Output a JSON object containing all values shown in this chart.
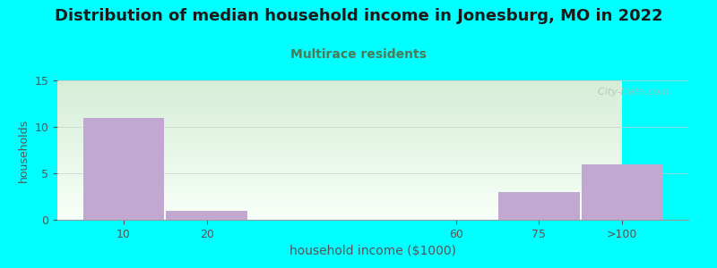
{
  "title": "Distribution of median household income in Jonesburg, MO in 2022",
  "subtitle": "Multirace residents",
  "xlabel": "household income ($1000)",
  "ylabel": "households",
  "background_color": "#00FFFF",
  "bar_color": "#C2A8D0",
  "categories": [
    "10",
    "20",
    "60",
    "75",
    ">100"
  ],
  "values": [
    11,
    1,
    0,
    3,
    6
  ],
  "ylim": [
    0,
    15
  ],
  "yticks": [
    0,
    5,
    10,
    15
  ],
  "title_fontsize": 13,
  "subtitle_fontsize": 10,
  "subtitle_color": "#4a7a5a",
  "watermark": "  City-Data.com",
  "xlabel_fontsize": 10,
  "ylabel_fontsize": 9,
  "tick_color": "#555555",
  "x_positions": [
    0,
    1,
    4,
    5,
    6
  ],
  "bar_widths": [
    1,
    1,
    1,
    1,
    1
  ]
}
